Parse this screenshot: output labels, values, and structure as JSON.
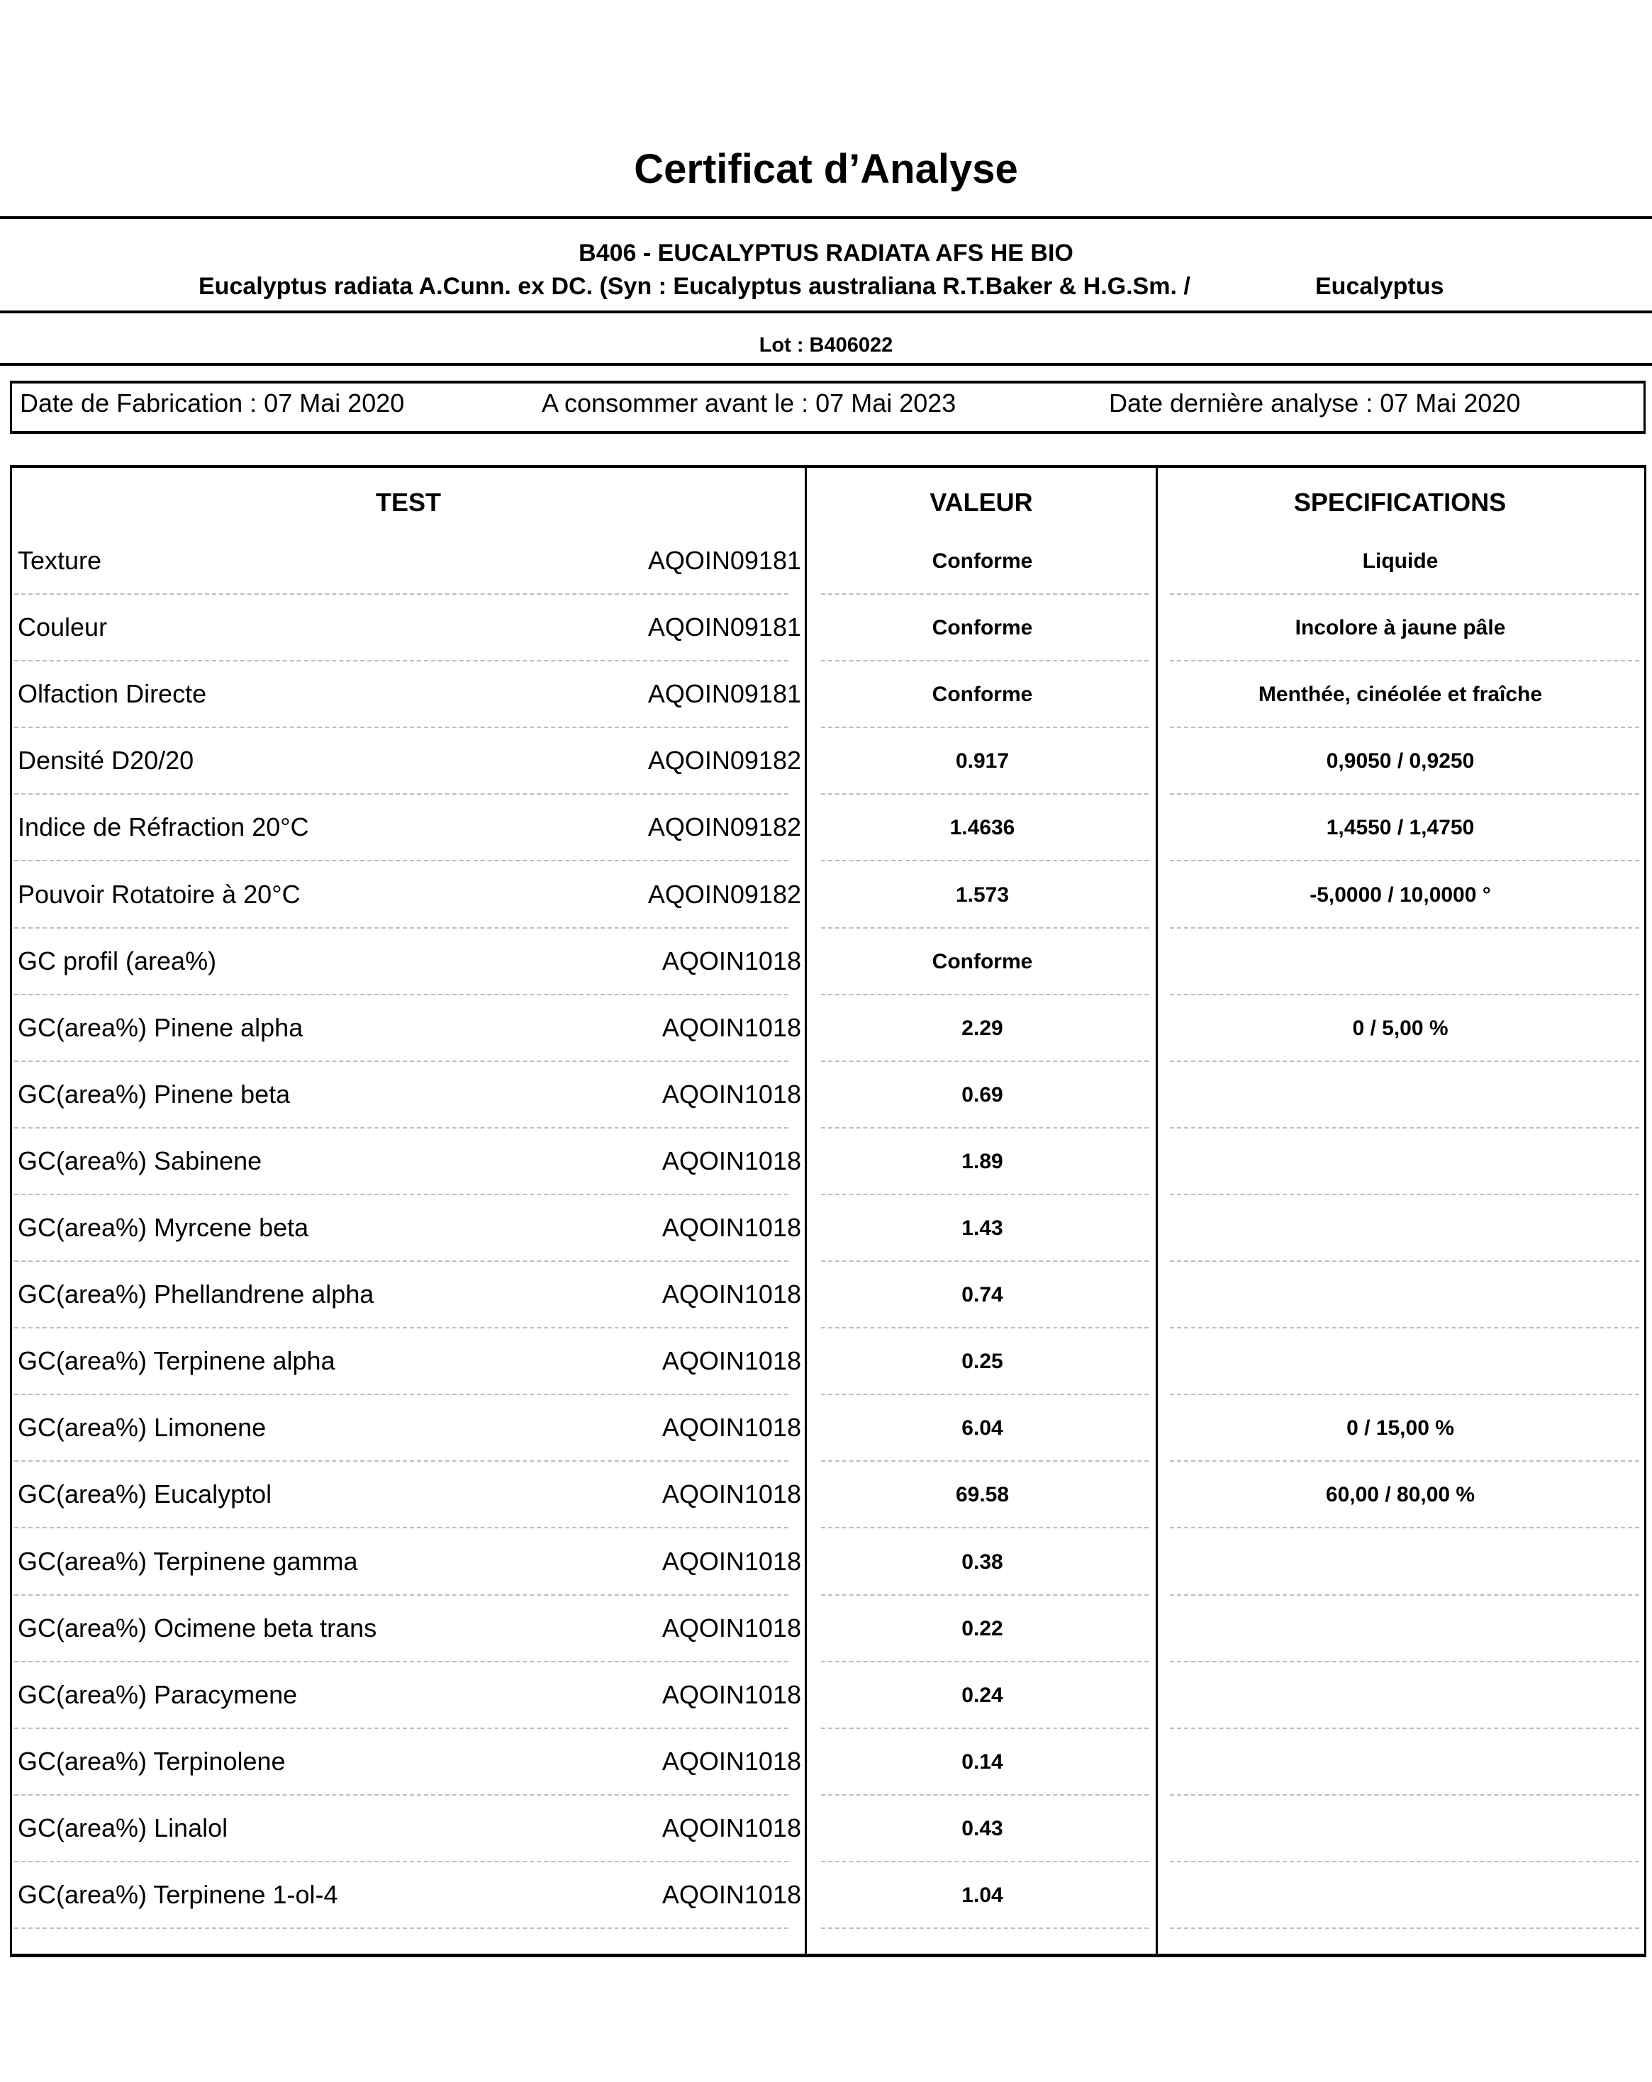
{
  "title": "Certificat d’Analyse",
  "product": {
    "name": "B406 - EUCALYPTUS RADIATA AFS HE BIO",
    "species": "Eucalyptus radiata A.Cunn. ex DC. (Syn : Eucalyptus australiana R.T.Baker & H.G.Sm. /",
    "common_name": "Eucalyptus",
    "lot": "Lot :  B406022"
  },
  "dates": {
    "fabrication": "Date de Fabrication : 07 Mai 2020",
    "best_before": "A consommer avant le : 07 Mai 2023",
    "last_analysis": "Date dernière analyse : 07 Mai 2020"
  },
  "table": {
    "headers": {
      "test": "TEST",
      "value": "VALEUR",
      "spec": "SPECIFICATIONS"
    },
    "rows": [
      {
        "test": "Texture",
        "code": "AQOIN09181",
        "value": "Conforme",
        "spec": "Liquide"
      },
      {
        "test": "Couleur",
        "code": "AQOIN09181",
        "value": "Conforme",
        "spec": "Incolore à jaune pâle"
      },
      {
        "test": "Olfaction Directe",
        "code": "AQOIN09181",
        "value": "Conforme",
        "spec": "Menthée, cinéolée et fraîche"
      },
      {
        "test": "Densité D20/20",
        "code": "AQOIN09182",
        "value": "0.917",
        "spec": "0,9050 / 0,9250"
      },
      {
        "test": "Indice de Réfraction 20°C",
        "code": "AQOIN09182",
        "value": "1.4636",
        "spec": "1,4550 / 1,4750"
      },
      {
        "test": "Pouvoir Rotatoire à 20°C",
        "code": "AQOIN09182",
        "value": "1.573",
        "spec": "-5,0000 / 10,0000 °"
      },
      {
        "test": "GC profil (area%)",
        "code": "AQOIN1018",
        "value": "Conforme",
        "spec": ""
      },
      {
        "test": "GC(area%) Pinene alpha",
        "code": "AQOIN1018",
        "value": "2.29",
        "spec": "0 / 5,00 %"
      },
      {
        "test": "GC(area%) Pinene beta",
        "code": "AQOIN1018",
        "value": "0.69",
        "spec": ""
      },
      {
        "test": "GC(area%) Sabinene",
        "code": "AQOIN1018",
        "value": "1.89",
        "spec": ""
      },
      {
        "test": "GC(area%) Myrcene beta",
        "code": "AQOIN1018",
        "value": "1.43",
        "spec": ""
      },
      {
        "test": "GC(area%) Phellandrene alpha",
        "code": "AQOIN1018",
        "value": "0.74",
        "spec": ""
      },
      {
        "test": "GC(area%) Terpinene alpha",
        "code": "AQOIN1018",
        "value": "0.25",
        "spec": ""
      },
      {
        "test": "GC(area%) Limonene",
        "code": "AQOIN1018",
        "value": "6.04",
        "spec": "0 / 15,00 %"
      },
      {
        "test": "GC(area%) Eucalyptol",
        "code": "AQOIN1018",
        "value": "69.58",
        "spec": "60,00 / 80,00 %"
      },
      {
        "test": "GC(area%) Terpinene gamma",
        "code": "AQOIN1018",
        "value": "0.38",
        "spec": ""
      },
      {
        "test": "GC(area%) Ocimene beta trans",
        "code": "AQOIN1018",
        "value": "0.22",
        "spec": ""
      },
      {
        "test": "GC(area%) Paracymene",
        "code": "AQOIN1018",
        "value": "0.24",
        "spec": ""
      },
      {
        "test": "GC(area%) Terpinolene",
        "code": "AQOIN1018",
        "value": "0.14",
        "spec": ""
      },
      {
        "test": "GC(area%) Linalol",
        "code": "AQOIN1018",
        "value": "0.43",
        "spec": ""
      },
      {
        "test": "GC(area%) Terpinene 1-ol-4",
        "code": "AQOIN1018",
        "value": "1.04",
        "spec": ""
      }
    ]
  }
}
